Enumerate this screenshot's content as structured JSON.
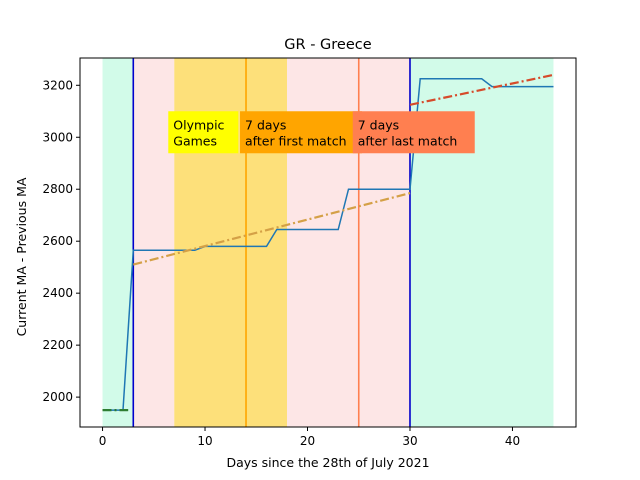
{
  "chart_data": {
    "type": "line",
    "title": "GR - Greece",
    "xlabel": "Days since the 28th of July 2021",
    "ylabel": "Current MA - Previous MA",
    "xlim": [
      -2.2,
      46.2
    ],
    "ylim": [
      1885,
      3305
    ],
    "x_ticks": [
      0,
      10,
      20,
      30,
      40
    ],
    "y_ticks": [
      2000,
      2200,
      2400,
      2600,
      2800,
      3000,
      3200
    ],
    "grid": false,
    "shaded_regions": [
      {
        "name": "before",
        "x0": 0,
        "x1": 3,
        "color": "#d2fbe9"
      },
      {
        "name": "between-left",
        "x0": 3,
        "x1": 7,
        "color": "#fde6e6"
      },
      {
        "name": "olympics",
        "x0": 7,
        "x1": 18,
        "color": "#fde07a"
      },
      {
        "name": "between-right",
        "x0": 18,
        "x1": 30,
        "color": "#fde6e6"
      },
      {
        "name": "after",
        "x0": 30,
        "x1": 44,
        "color": "#d2fbe9"
      }
    ],
    "vertical_lines": [
      {
        "name": "period-start",
        "x": 3,
        "color": "#0000cc"
      },
      {
        "name": "first-match-7d",
        "x": 14,
        "color": "#ffa500"
      },
      {
        "name": "last-match-7d",
        "x": 25,
        "color": "#ff7f50"
      },
      {
        "name": "period-end",
        "x": 30,
        "color": "#0000cc"
      }
    ],
    "series": [
      {
        "color": "#1f77b4",
        "style": "solid",
        "x": [
          0,
          1,
          2,
          3,
          4,
          5,
          6,
          7,
          8,
          9,
          10,
          11,
          12,
          13,
          14,
          15,
          16,
          17,
          18,
          19,
          20,
          21,
          22,
          23,
          24,
          25,
          26,
          27,
          28,
          29,
          30,
          31,
          32,
          33,
          34,
          35,
          36,
          37,
          38,
          39,
          40,
          41,
          42,
          43,
          44
        ],
        "values": [
          1950,
          1950,
          1950,
          2565,
          2565,
          2565,
          2565,
          2565,
          2565,
          2565,
          2580,
          2580,
          2580,
          2580,
          2580,
          2580,
          2580,
          2645,
          2645,
          2645,
          2645,
          2645,
          2645,
          2645,
          2800,
          2800,
          2800,
          2800,
          2800,
          2800,
          2800,
          3225,
          3225,
          3225,
          3225,
          3225,
          3225,
          3225,
          3195,
          3195,
          3195,
          3195,
          3195,
          3195,
          3195
        ]
      },
      {
        "color": "#2e7d32",
        "style": "dashdot",
        "x": [
          0,
          2.5
        ],
        "values": [
          1950,
          1950
        ]
      },
      {
        "color": "#d4a046",
        "style": "dashdot",
        "x": [
          3,
          30
        ],
        "values": [
          2510,
          2785
        ]
      },
      {
        "color": "#d64a2a",
        "style": "dashdot",
        "x": [
          30,
          44
        ],
        "values": [
          3125,
          3240
        ]
      }
    ],
    "annotations": [
      {
        "name": "olympic-games",
        "lines": [
          "Olympic",
          "Games"
        ],
        "x": 7,
        "y": 3000,
        "bg": "#ffff00"
      },
      {
        "name": "first-match",
        "lines": [
          "7 days",
          "after first match"
        ],
        "x": 14,
        "y": 3000,
        "bg": "#ffa500"
      },
      {
        "name": "last-match",
        "lines": [
          "7 days",
          "after last match"
        ],
        "x": 25,
        "y": 3000,
        "bg": "#ff7f50"
      }
    ]
  }
}
